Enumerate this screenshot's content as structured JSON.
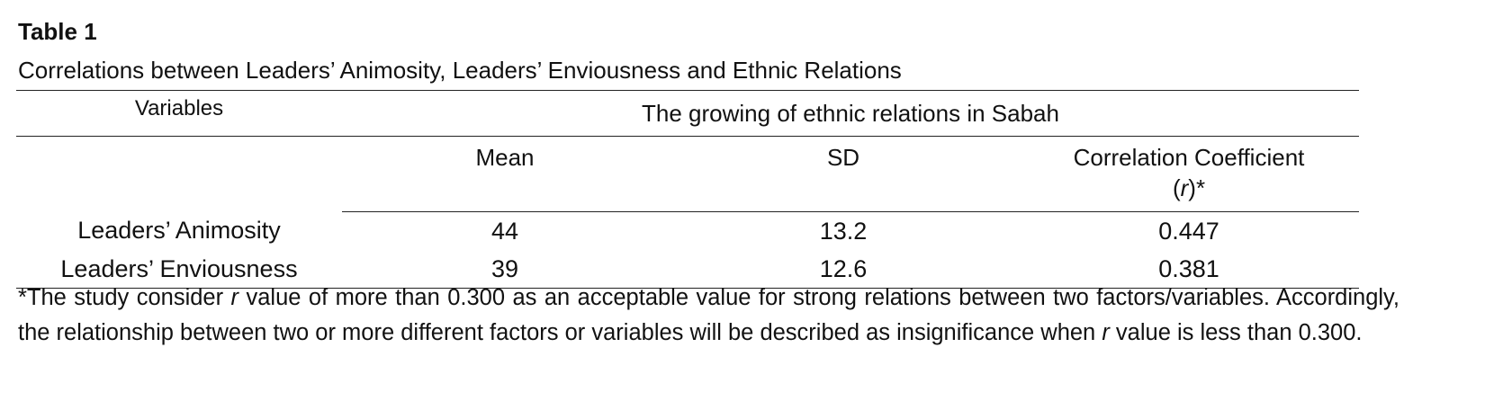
{
  "title": "Table 1",
  "caption": "Correlations between Leaders’ Animosity, Leaders’ Enviousness and Ethnic Relations",
  "table": {
    "header": {
      "variables": "Variables",
      "group": "The growing of ethnic relations in Sabah",
      "columns": [
        "Mean",
        "SD"
      ],
      "coefficient_parts": [
        "Correlation Coefficient",
        "(",
        "r",
        ")*"
      ]
    },
    "rows": [
      [
        "Leaders’ Animosity",
        "44",
        "13.2",
        "0.447"
      ],
      [
        "Leaders’ Enviousness",
        "39",
        "12.6",
        "0.381"
      ]
    ]
  },
  "note_parts": [
    "*The study consider ",
    "r",
    " value of more than 0.300 as an acceptable value for strong relations between two factors/variables. Accordingly, the relationship between two or more different factors or variables will be described as insignificance when ",
    "r",
    " value is less than 0.300."
  ]
}
